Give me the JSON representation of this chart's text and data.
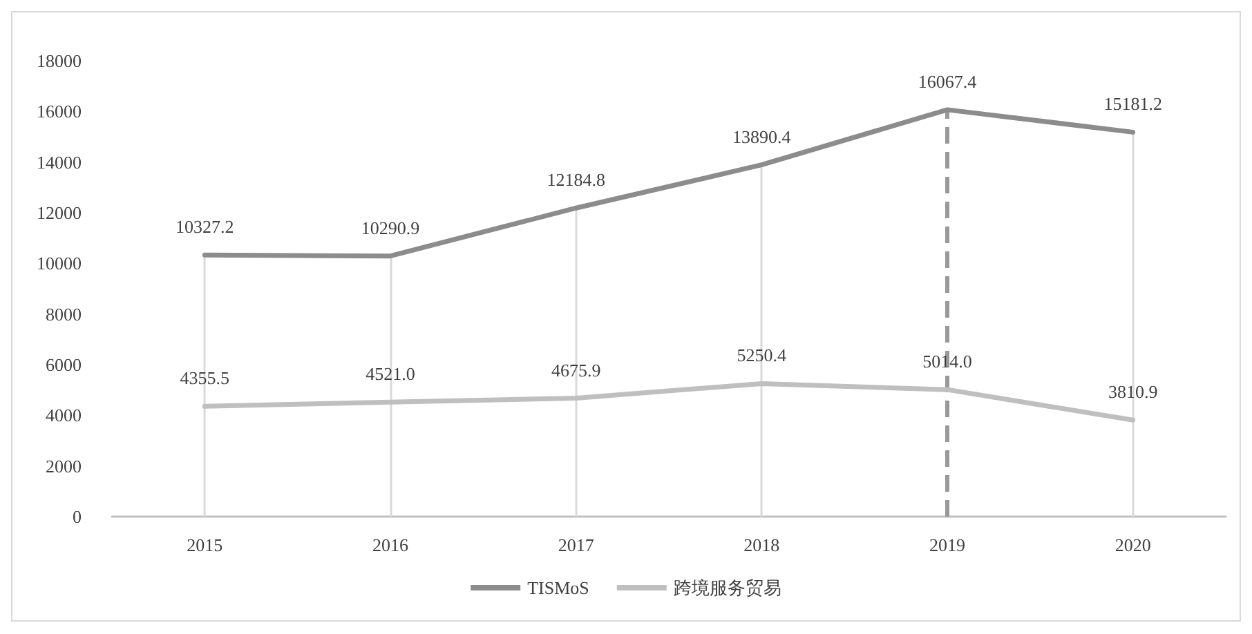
{
  "chart_data": {
    "type": "line",
    "categories": [
      "2015",
      "2016",
      "2017",
      "2018",
      "2019",
      "2020"
    ],
    "series": [
      {
        "name": "TISMoS",
        "color": "#8c8c8c",
        "values": [
          10327.2,
          10290.9,
          12184.8,
          13890.4,
          16067.4,
          15181.2
        ]
      },
      {
        "name": "跨境服务贸易",
        "color": "#bfbfbf",
        "values": [
          4355.5,
          4521.0,
          4675.9,
          5250.4,
          5014.0,
          3810.9
        ]
      }
    ],
    "value_labels": [
      [
        "10327.2",
        "10290.9",
        "12184.8",
        "13890.4",
        "16067.4",
        "15181.2"
      ],
      [
        "4355.5",
        "4521.0",
        "4675.9",
        "5250.4",
        "5014.0",
        "3810.9"
      ]
    ],
    "ylim": [
      0,
      18000
    ],
    "yticks": [
      0,
      2000,
      4000,
      6000,
      8000,
      10000,
      12000,
      14000,
      16000,
      18000
    ],
    "ref_lines": [
      {
        "axis": "x",
        "value": "2015",
        "color": "#d9d9d9",
        "line_style": "solid"
      },
      {
        "axis": "x",
        "value": "2016",
        "color": "#d9d9d9",
        "line_style": "solid"
      },
      {
        "axis": "x",
        "value": "2017",
        "color": "#d9d9d9",
        "line_style": "solid"
      },
      {
        "axis": "x",
        "value": "2018",
        "color": "#d9d9d9",
        "line_style": "solid"
      },
      {
        "axis": "x",
        "value": "2019",
        "color": "#999999",
        "line_style": "dashed"
      },
      {
        "axis": "x",
        "value": "2020",
        "color": "#d9d9d9",
        "line_style": "solid"
      }
    ],
    "grid": false,
    "legend": "bottom",
    "marker": "none",
    "line_style": "solid"
  }
}
